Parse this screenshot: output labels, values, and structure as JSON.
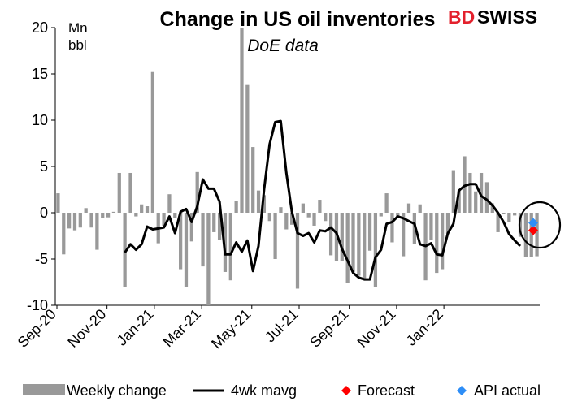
{
  "chart_data": {
    "type": "bar",
    "title": "Change in US oil inventories",
    "subtitle": "DoE data",
    "unit_line1": "Mn",
    "unit_line2": "bbl",
    "brand_bd": "BD",
    "brand_swiss": "SWISS",
    "ylim": [
      -10,
      20
    ],
    "yticks": [
      20,
      15,
      10,
      5,
      0,
      -5,
      -10
    ],
    "xticks": [
      "Sep-20",
      "Nov-20",
      "Jan-21",
      "Mar-21",
      "May-21",
      "Jul-21",
      "Sep-21",
      "Nov-21",
      "Jan-22"
    ],
    "grid": false,
    "legend_position": "bottom",
    "series": [
      {
        "name": "Weekly change",
        "type": "bar",
        "color": "#999999",
        "values": [
          2.1,
          -4.5,
          -1.7,
          -1.9,
          -1.6,
          0.5,
          -1.6,
          -4.0,
          -0.6,
          -0.5,
          0.1,
          4.3,
          -8.0,
          4.3,
          -0.4,
          0.9,
          0.7,
          15.2,
          -3.3,
          -1.4,
          2.0,
          -0.6,
          -6.1,
          -8.0,
          -3.1,
          4.4,
          -5.8,
          -10.0,
          -2.1,
          -2.9,
          -6.4,
          -7.3,
          1.3,
          21.5,
          13.8,
          7.1,
          2.4,
          1.9,
          -0.9,
          -5.0,
          0.6,
          -1.8,
          -1.3,
          -8.2,
          1.0,
          -0.5,
          -1.4,
          1.4,
          -0.9,
          -4.6,
          -5.2,
          -5.2,
          -7.6,
          -6.4,
          -6.8,
          -7.1,
          -4.1,
          -8.0,
          -0.4,
          2.1,
          -3.2,
          -0.6,
          -4.7,
          1.0,
          -3.4,
          0.9,
          -7.3,
          -2.9,
          -6.5,
          -6.1,
          -2.3,
          4.6,
          2.4,
          6.1,
          4.3,
          2.3,
          4.3,
          3.3,
          1.0,
          -2.1,
          -0.1,
          -1.0,
          -0.3,
          -2.6,
          -4.8,
          -4.8,
          -4.7
        ]
      },
      {
        "name": "4wk mavg",
        "type": "line",
        "color": "#000000",
        "values": [
          -4.3,
          -3.4,
          -4.0,
          -3.4,
          -1.5,
          -1.8,
          -1.7,
          -1.6,
          -0.4,
          -2.2,
          0.1,
          0.4,
          -1.0,
          0.7,
          3.6,
          2.6,
          2.6,
          1.2,
          -4.5,
          -4.5,
          -3.2,
          -4.2,
          -3.0,
          -6.3,
          -3.6,
          2.5,
          7.4,
          9.8,
          9.9,
          4.3,
          0.1,
          -2.2,
          -2.5,
          -2.2,
          -3.2,
          -1.9,
          -2.0,
          -1.6,
          -2.2,
          -3.9,
          -5.2,
          -6.5,
          -7.0,
          -7.2,
          -7.2,
          -4.8,
          -4.0,
          -1.2,
          -1.0,
          -0.4,
          -0.6,
          -0.9,
          -1.2,
          -3.4,
          -3.6,
          -3.3,
          -4.5,
          -4.6,
          -2.2,
          -1.2,
          2.4,
          2.9,
          3.1,
          3.1,
          1.8,
          1.4,
          0.8,
          0.0,
          -1.0,
          -2.3,
          -3.0,
          -3.6
        ]
      },
      {
        "name": "Forecast",
        "type": "point",
        "color": "#ff0000",
        "value": -1.9
      },
      {
        "name": "API actual",
        "type": "point",
        "color": "#2e8ef7",
        "value": -1.1
      }
    ]
  }
}
